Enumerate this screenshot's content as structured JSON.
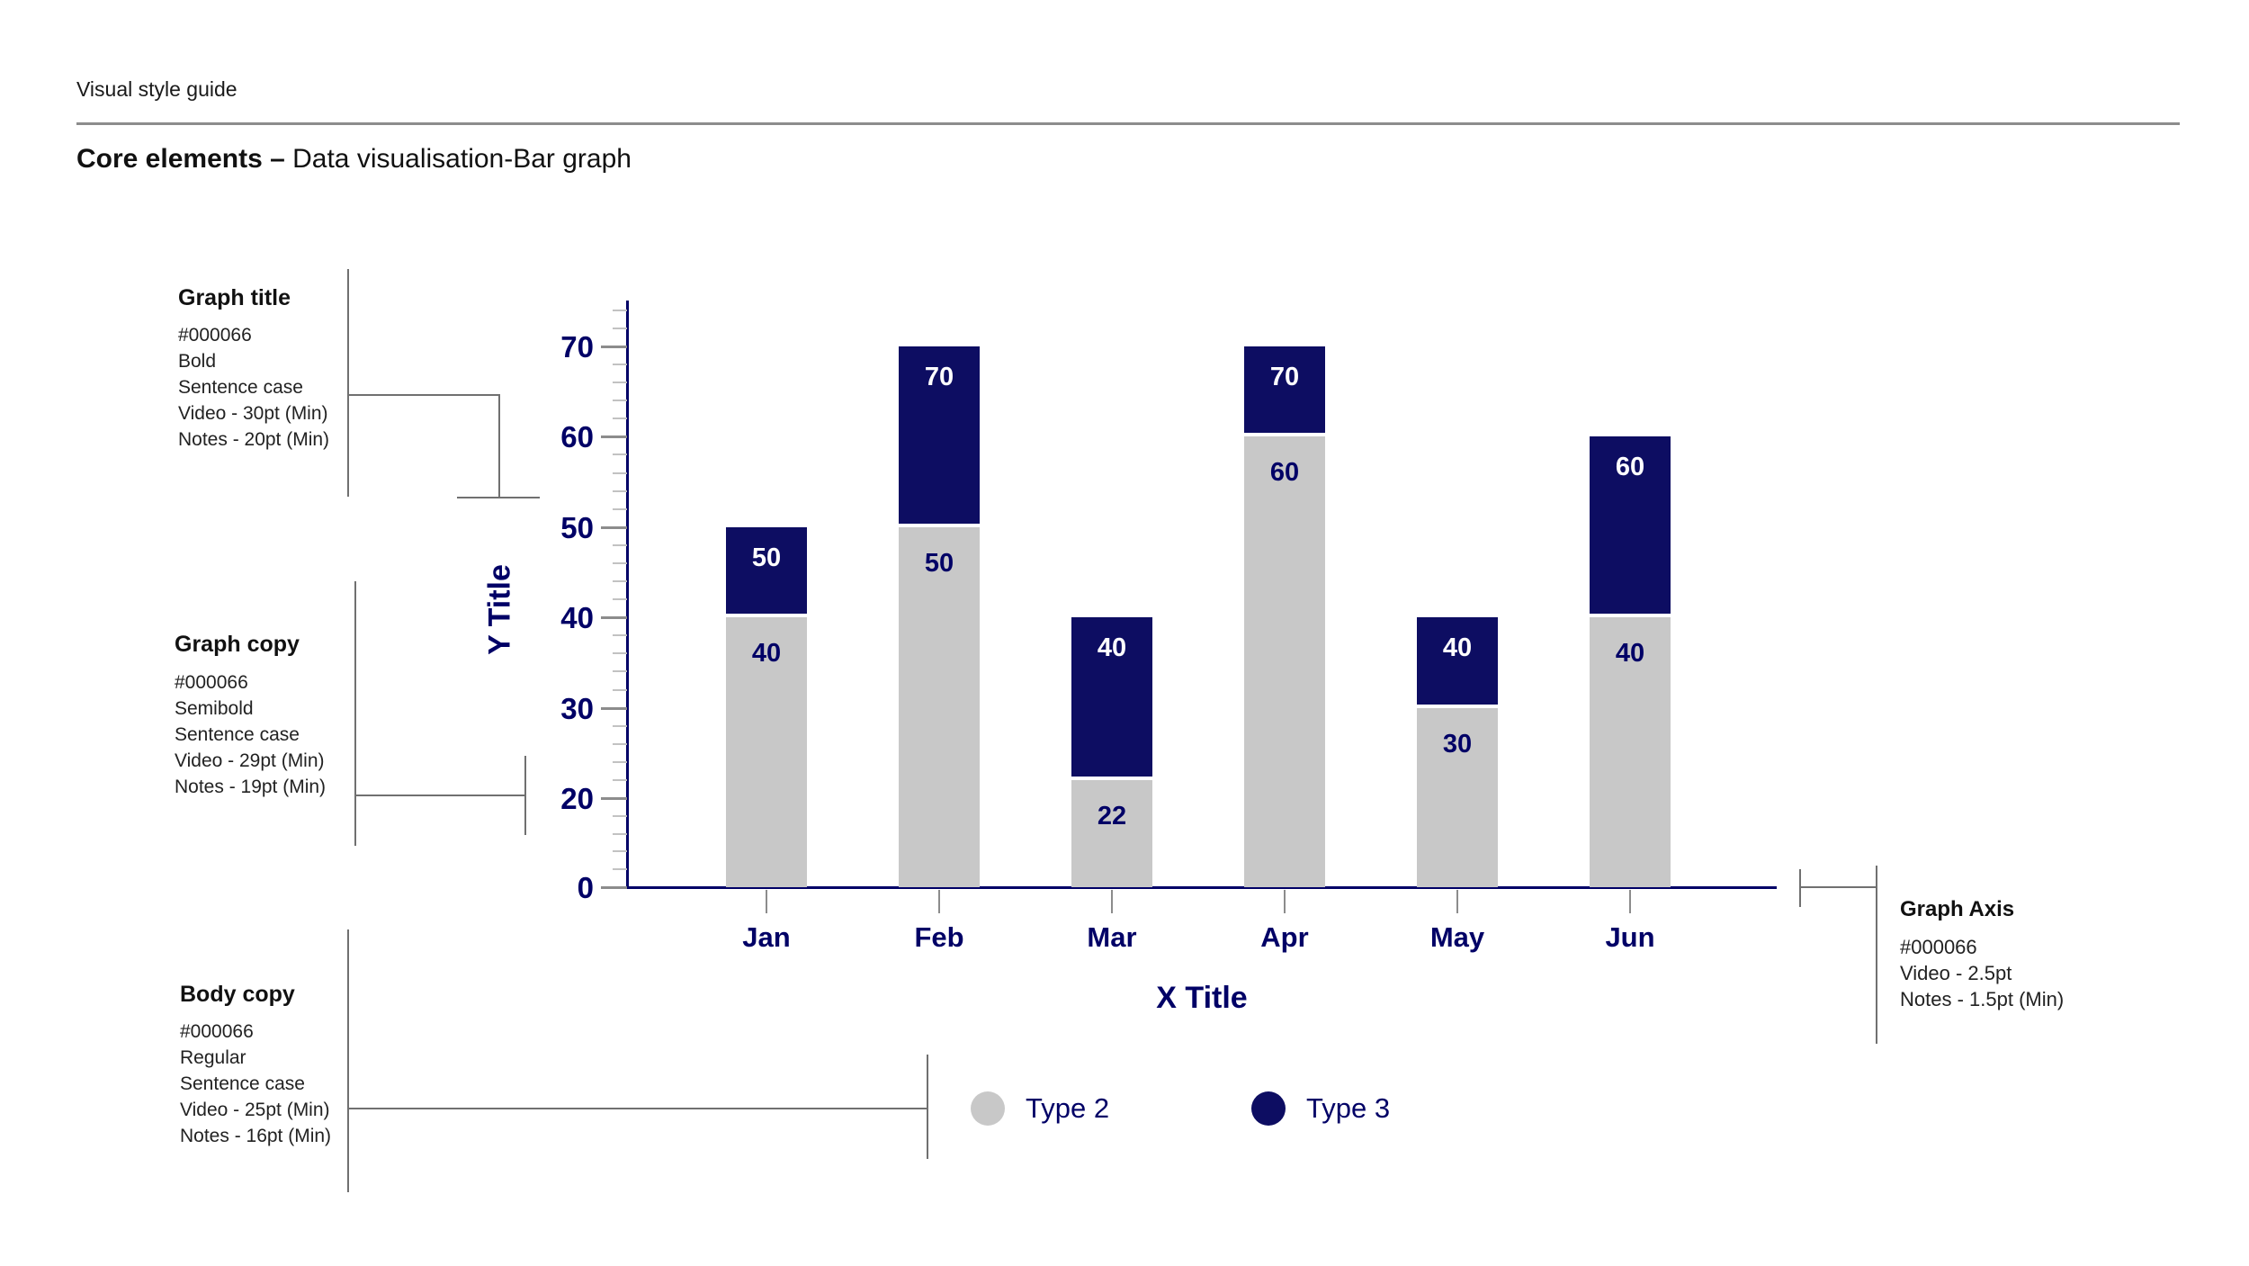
{
  "page": {
    "eyebrow": "Visual style guide",
    "title_bold": "Core elements –",
    "title_rest": " Data visualisation-Bar graph"
  },
  "annotations": {
    "graph_title": {
      "title": "Graph title",
      "lines": [
        "#000066",
        "Bold",
        "Sentence case",
        "Video - 30pt (Min)",
        "Notes - 20pt (Min)"
      ]
    },
    "graph_copy": {
      "title": "Graph copy",
      "lines": [
        "#000066",
        "Semibold",
        "Sentence case",
        "Video - 29pt (Min)",
        "Notes - 19pt (Min)"
      ]
    },
    "body_copy": {
      "title": "Body copy",
      "lines": [
        "#000066",
        "Regular",
        "Sentence case",
        "Video - 25pt (Min)",
        "Notes - 16pt (Min)"
      ]
    },
    "graph_axis": {
      "title": "Graph Axis",
      "lines": [
        "#000066",
        "Video - 2.5pt",
        "Notes - 1.5pt (Min)"
      ]
    }
  },
  "chart_data": {
    "type": "bar",
    "stacked": true,
    "title": "",
    "xlabel": "X Title",
    "ylabel": "Y Title",
    "categories": [
      "Jan",
      "Feb",
      "Mar",
      "Apr",
      "May",
      "Jun"
    ],
    "series": [
      {
        "name": "Type 2",
        "color": "#c8c8c8",
        "values": [
          40,
          50,
          22,
          60,
          30,
          40
        ]
      },
      {
        "name": "Type 3",
        "color": "#0d0d62",
        "values": [
          10,
          20,
          18,
          10,
          10,
          20
        ]
      }
    ],
    "stack_totals": [
      50,
      70,
      40,
      70,
      40,
      60
    ],
    "segment_labels": {
      "type2": [
        "40",
        "50",
        "22",
        "60",
        "30",
        "40"
      ],
      "type3": [
        "50",
        "70",
        "40",
        "70",
        "40",
        "60"
      ]
    },
    "y_axis": {
      "ticks": [
        0,
        20,
        30,
        40,
        50,
        60,
        70
      ],
      "minor_per_interval": 4
    },
    "legend": [
      {
        "label": "Type 2",
        "color": "#c8c8c8"
      },
      {
        "label": "Type 3",
        "color": "#0d0d62"
      }
    ],
    "colors": {
      "accent_navy": "#000066",
      "bar_gray": "#c8c8c8",
      "bar_navy": "#0d0d62",
      "tick_gray": "#8c8c8c"
    }
  }
}
